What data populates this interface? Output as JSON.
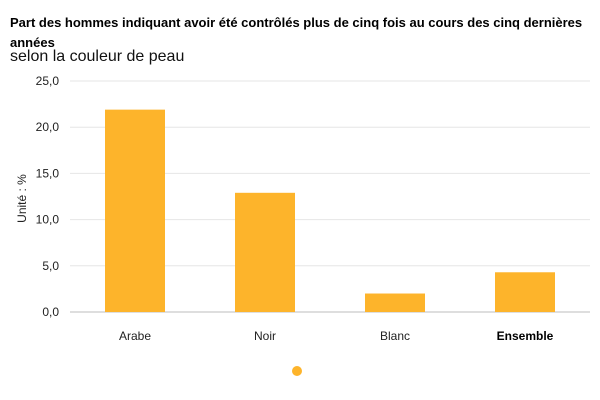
{
  "chart_data": {
    "type": "bar",
    "title": "Part des hommes indiquant avoir été contrôlés plus de cinq fois au cours des cinq dernières années",
    "subtitle": "selon la couleur de peau",
    "ylabel": "Unité : %",
    "xlabel": "",
    "categories": [
      "Arabe",
      "Noir",
      "Blanc",
      "Ensemble"
    ],
    "bold_categories": [
      "Ensemble"
    ],
    "values": [
      21.9,
      12.9,
      2.0,
      4.3
    ],
    "ylim": [
      0,
      25
    ],
    "yticks": [
      "0,0",
      "5,0",
      "10,0",
      "15,0",
      "20,0",
      "25,0"
    ],
    "grid": true,
    "bar_color": "#FDB42B",
    "grid_color": "#E6E6E6",
    "legend": {
      "placement": "bottom",
      "marker_color": "#FDB42B",
      "label": ""
    }
  }
}
